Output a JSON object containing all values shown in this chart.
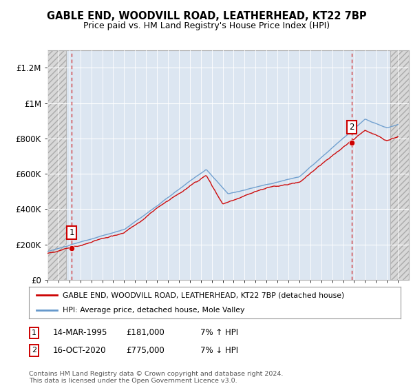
{
  "title": "GABLE END, WOODVILL ROAD, LEATHERHEAD, KT22 7BP",
  "subtitle": "Price paid vs. HM Land Registry's House Price Index (HPI)",
  "ylabel_ticks": [
    "£0",
    "£200K",
    "£400K",
    "£600K",
    "£800K",
    "£1M",
    "£1.2M"
  ],
  "ytick_values": [
    0,
    200000,
    400000,
    600000,
    800000,
    1000000,
    1200000
  ],
  "ylim": [
    0,
    1300000
  ],
  "xlim_start": 1993,
  "xlim_end": 2026,
  "sale1_x": 1995.2,
  "sale1_y": 181000,
  "sale2_x": 2020.79,
  "sale2_y": 775000,
  "sale1_date": "14-MAR-1995",
  "sale1_price": "£181,000",
  "sale1_hpi": "7% ↑ HPI",
  "sale2_date": "16-OCT-2020",
  "sale2_price": "£775,000",
  "sale2_hpi": "7% ↓ HPI",
  "legend_line1": "GABLE END, WOODVILL ROAD, LEATHERHEAD, KT22 7BP (detached house)",
  "legend_line2": "HPI: Average price, detached house, Mole Valley",
  "footer": "Contains HM Land Registry data © Crown copyright and database right 2024.\nThis data is licensed under the Open Government Licence v3.0.",
  "line_color_red": "#cc0000",
  "line_color_blue": "#6699cc",
  "bg_color": "#dce6f1",
  "point_color": "#cc0000",
  "box_color_border": "#cc0000",
  "hatch_left_end": 1994.7,
  "hatch_right_start": 2024.3
}
